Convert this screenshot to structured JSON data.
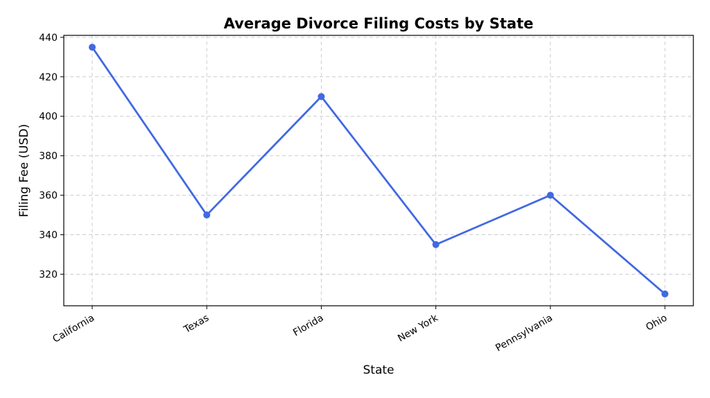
{
  "chart_data": {
    "type": "line",
    "title": "Average Divorce Filing Costs by State",
    "xlabel": "State",
    "ylabel": "Filing Fee (USD)",
    "categories": [
      "California",
      "Texas",
      "Florida",
      "New York",
      "Pennsylvania",
      "Ohio"
    ],
    "values": [
      435,
      350,
      410,
      335,
      360,
      310
    ],
    "ylim": [
      304,
      441
    ],
    "yticks": [
      320,
      340,
      360,
      380,
      400,
      420,
      440
    ],
    "grid": true,
    "line_color": "#4169E1",
    "marker": "circle"
  }
}
